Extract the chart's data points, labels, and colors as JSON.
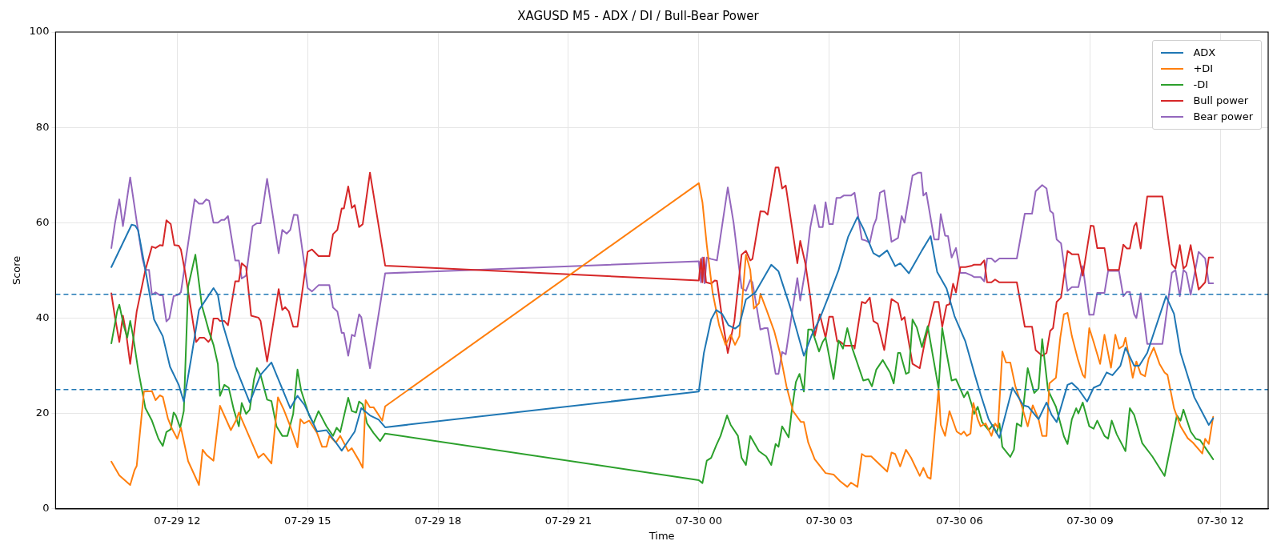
{
  "chart_data": {
    "type": "line",
    "title": "XAGUSD M5 - ADX / DI / Bull-Bear Power",
    "xlabel": "Time",
    "ylabel": "Score",
    "xlim": [
      "--07-29T09:12",
      "--07-30T13:06"
    ],
    "ylim": [
      0,
      100
    ],
    "xticks": [
      {
        "value": "--07-29T12:00",
        "label": "07-29 12"
      },
      {
        "value": "--07-29T15:00",
        "label": "07-29 15"
      },
      {
        "value": "--07-29T18:00",
        "label": "07-29 18"
      },
      {
        "value": "--07-29T21:00",
        "label": "07-29 21"
      },
      {
        "value": "--07-30T00:00",
        "label": "07-30 00"
      },
      {
        "value": "--07-30T03:00",
        "label": "07-30 03"
      },
      {
        "value": "--07-30T06:00",
        "label": "07-30 06"
      },
      {
        "value": "--07-30T09:00",
        "label": "07-30 09"
      },
      {
        "value": "--07-30T12:00",
        "label": "07-30 12"
      }
    ],
    "yticks": [
      0,
      20,
      40,
      60,
      80,
      100
    ],
    "grid": true,
    "legend": "top right",
    "marker": "none",
    "line_style": "solid",
    "ref_lines": [
      {
        "axis": "y",
        "value": 45,
        "color": "#1f77b4",
        "line_style": "dashed"
      },
      {
        "axis": "y",
        "value": 25,
        "color": "#1f77b4",
        "line_style": "dashed"
      }
    ],
    "series": [
      {
        "name": "ADX",
        "color": "#1f77b4",
        "x": [
          "--07-29T10:29",
          "--07-29T10:57",
          "--07-29T11:02",
          "--07-29T11:06",
          "--07-29T11:16",
          "--07-29T11:28",
          "--07-29T11:40",
          "--07-29T11:50",
          "--07-29T12:02",
          "--07-29T12:09",
          "--07-29T12:19",
          "--07-29T12:30",
          "--07-29T12:50",
          "--07-29T12:56",
          "--07-29T13:03",
          "--07-29T13:20",
          "--07-29T13:40",
          "--07-29T13:46",
          "--07-29T13:55",
          "--07-29T14:10",
          "--07-29T14:17",
          "--07-29T14:36",
          "--07-29T14:46",
          "--07-29T14:56",
          "--07-29T15:13",
          "--07-29T15:26",
          "--07-29T15:39",
          "--07-29T15:47",
          "--07-29T15:56",
          "--07-29T16:05",
          "--07-29T16:14",
          "--07-29T16:26",
          "--07-29T16:38",
          "--07-29T16:47",
          "--07-30T00:00",
          "--07-30T00:07",
          "--07-30T00:17",
          "--07-30T00:24",
          "--07-30T00:32",
          "--07-30T00:41",
          "--07-30T00:50",
          "--07-30T00:56",
          "--07-30T01:05",
          "--07-30T01:18",
          "--07-30T01:40",
          "--07-30T01:50",
          "--07-30T02:07",
          "--07-30T02:25",
          "--07-30T02:36",
          "--07-30T02:47",
          "--07-30T03:02",
          "--07-30T03:13",
          "--07-30T03:26",
          "--07-30T03:39",
          "--07-30T03:47",
          "--07-30T04:01",
          "--07-30T04:09",
          "--07-30T04:20",
          "--07-30T04:31",
          "--07-30T04:38",
          "--07-30T04:50",
          "--07-30T04:59",
          "--07-30T05:08",
          "--07-30T05:20",
          "--07-30T05:29",
          "--07-30T05:42",
          "--07-30T05:53",
          "--07-30T06:08",
          "--07-30T06:21",
          "--07-30T06:29",
          "--07-30T06:40",
          "--07-30T06:55",
          "--07-30T07:13",
          "--07-30T07:28",
          "--07-30T07:35",
          "--07-30T07:49",
          "--07-30T08:00",
          "--07-30T08:07",
          "--07-30T08:14",
          "--07-30T08:29",
          "--07-30T08:35",
          "--07-30T08:44",
          "--07-30T08:56",
          "--07-30T09:05",
          "--07-30T09:14",
          "--07-30T09:23",
          "--07-30T09:31",
          "--07-30T09:42",
          "--07-30T09:49",
          "--07-30T10:01",
          "--07-30T10:08",
          "--07-30T10:19",
          "--07-30T10:45",
          "--07-30T10:56",
          "--07-30T11:05",
          "--07-30T11:24",
          "--07-30T11:44",
          "--07-30T11:50"
        ],
        "values": [
          50.7,
          59.6,
          59.4,
          58.4,
          50.1,
          39.7,
          36.2,
          29.8,
          26.0,
          22.5,
          31.4,
          41.7,
          46.3,
          44.9,
          38.6,
          29.9,
          22.3,
          24.6,
          28.1,
          30.7,
          28.1,
          21.1,
          23.7,
          21.7,
          16.2,
          16.5,
          13.9,
          12.2,
          14.2,
          16.2,
          21.1,
          19.6,
          18.7,
          17.1,
          24.6,
          32.7,
          39.7,
          41.7,
          40.9,
          38.5,
          37.8,
          38.5,
          43.9,
          45.4,
          51.2,
          49.8,
          41.9,
          32.1,
          36.5,
          39.9,
          45.7,
          50.1,
          57.0,
          61.2,
          58.8,
          53.6,
          52.9,
          54.2,
          50.9,
          51.5,
          49.4,
          51.8,
          54.2,
          57.2,
          49.7,
          46.2,
          40.4,
          35.1,
          28.1,
          24.0,
          18.8,
          14.9,
          25.4,
          21.7,
          21.4,
          18.8,
          22.3,
          19.7,
          18.2,
          26.0,
          26.4,
          25.1,
          22.5,
          25.4,
          26.0,
          28.6,
          28.0,
          30.0,
          33.8,
          30.0,
          30.0,
          32.7,
          44.6,
          40.9,
          32.7,
          23.4,
          17.6,
          19.0
        ]
      },
      {
        "name": "+DI",
        "color": "#ff7f0e",
        "x": [
          "--07-29T10:29",
          "--07-29T10:40",
          "--07-29T10:55",
          "--07-29T11:01",
          "--07-29T11:04",
          "--07-29T11:14",
          "--07-29T11:25",
          "--07-29T11:30",
          "--07-29T11:36",
          "--07-29T11:40",
          "--07-29T11:47",
          "--07-29T11:53",
          "--07-29T12:00",
          "--07-29T12:05",
          "--07-29T12:15",
          "--07-29T12:30",
          "--07-29T12:35",
          "--07-29T12:41",
          "--07-29T12:50",
          "--07-29T12:59",
          "--07-29T13:14",
          "--07-29T13:22",
          "--07-29T13:25",
          "--07-29T13:29",
          "--07-29T13:52",
          "--07-29T13:59",
          "--07-29T14:10",
          "--07-29T14:19",
          "--07-29T14:27",
          "--07-29T14:36",
          "--07-29T14:46",
          "--07-29T14:50",
          "--07-29T14:55",
          "--07-29T15:02",
          "--07-29T15:13",
          "--07-29T15:20",
          "--07-29T15:26",
          "--07-29T15:30",
          "--07-29T15:39",
          "--07-29T15:45",
          "--07-29T15:56",
          "--07-29T16:01",
          "--07-29T16:11",
          "--07-29T16:16",
          "--07-29T16:20",
          "--07-29T16:26",
          "--07-29T16:31",
          "--07-29T16:43",
          "--07-29T16:47",
          "--07-30T00:00",
          "--07-30T00:05",
          "--07-30T00:11",
          "--07-30T00:19",
          "--07-30T00:28",
          "--07-30T00:37",
          "--07-30T00:44",
          "--07-30T00:50",
          "--07-30T00:56",
          "--07-30T01:05",
          "--07-30T01:11",
          "--07-30T01:16",
          "--07-30T01:23",
          "--07-30T01:25",
          "--07-30T01:33",
          "--07-30T01:44",
          "--07-30T01:52",
          "--07-30T02:01",
          "--07-30T02:10",
          "--07-30T02:21",
          "--07-30T02:25",
          "--07-30T02:31",
          "--07-30T02:40",
          "--07-30T02:55",
          "--07-30T03:06",
          "--07-30T03:15",
          "--07-30T03:25",
          "--07-30T03:30",
          "--07-30T03:39",
          "--07-30T03:45",
          "--07-30T03:50",
          "--07-30T03:58",
          "--07-30T04:20",
          "--07-30T04:26",
          "--07-30T04:31",
          "--07-30T04:38",
          "--07-30T04:46",
          "--07-30T04:53",
          "--07-30T05:05",
          "--07-30T05:10",
          "--07-30T05:16",
          "--07-30T05:20",
          "--07-30T05:31",
          "--07-30T05:34",
          "--07-30T05:40",
          "--07-30T05:46",
          "--07-30T05:56",
          "--07-30T06:02",
          "--07-30T06:06",
          "--07-30T06:10",
          "--07-30T06:15",
          "--07-30T06:19",
          "--07-30T06:25",
          "--07-30T06:29",
          "--07-30T06:36",
          "--07-30T06:44",
          "--07-30T06:49",
          "--07-30T06:53",
          "--07-30T06:59",
          "--07-30T07:04",
          "--07-30T07:10",
          "--07-30T07:17",
          "--07-30T07:25",
          "--07-30T07:34",
          "--07-30T07:41",
          "--07-30T07:49",
          "--07-30T07:54",
          "--07-30T08:00",
          "--07-30T08:04",
          "--07-30T08:13",
          "--07-30T08:19",
          "--07-30T08:24",
          "--07-30T08:29",
          "--07-30T08:35",
          "--07-30T08:43",
          "--07-30T08:50",
          "--07-30T08:53",
          "--07-30T08:59",
          "--07-30T09:05",
          "--07-30T09:14",
          "--07-30T09:20",
          "--07-30T09:29",
          "--07-30T09:35",
          "--07-30T09:40",
          "--07-30T09:46",
          "--07-30T09:49",
          "--07-30T09:59",
          "--07-30T10:04",
          "--07-30T10:10",
          "--07-30T10:16",
          "--07-30T10:21",
          "--07-30T10:28",
          "--07-30T10:36",
          "--07-30T10:43",
          "--07-30T10:47",
          "--07-30T10:56",
          "--07-30T11:05",
          "--07-30T11:15",
          "--07-30T11:22",
          "--07-30T11:35",
          "--07-30T11:39",
          "--07-30T11:44",
          "--07-30T11:50"
        ],
        "values": [
          9.9,
          7.0,
          5.0,
          8.1,
          9.0,
          24.6,
          24.7,
          22.8,
          23.8,
          23.5,
          19.0,
          16.7,
          14.7,
          17.0,
          10.0,
          5.0,
          12.4,
          11.2,
          10.1,
          21.6,
          16.5,
          18.8,
          20.2,
          18.8,
          10.7,
          11.6,
          9.5,
          23.4,
          20.8,
          17.3,
          12.9,
          18.8,
          17.9,
          18.5,
          15.9,
          13.0,
          13.0,
          15.3,
          13.9,
          15.3,
          12.1,
          12.7,
          10.1,
          8.6,
          22.8,
          21.3,
          21.3,
          18.5,
          21.5,
          68.3,
          64.3,
          55.3,
          45.4,
          38.5,
          34.4,
          36.5,
          34.4,
          36.2,
          53.3,
          50.1,
          42.0,
          43.1,
          45.1,
          41.9,
          37.3,
          32.7,
          25.7,
          20.5,
          18.2,
          18.2,
          13.9,
          10.4,
          7.5,
          7.2,
          5.8,
          4.6,
          5.5,
          4.6,
          11.5,
          11.0,
          11.0,
          7.8,
          11.8,
          11.5,
          8.9,
          12.4,
          10.7,
          6.9,
          8.6,
          6.6,
          6.3,
          25.1,
          17.6,
          15.3,
          20.5,
          16.2,
          15.6,
          16.2,
          15.3,
          15.8,
          22.2,
          18.8,
          17.3,
          17.9,
          15.3,
          17.9,
          17.0,
          33.0,
          30.7,
          30.7,
          25.7,
          22.0,
          17.3,
          21.7,
          18.8,
          15.3,
          15.3,
          26.3,
          27.5,
          35.9,
          40.8,
          41.1,
          36.2,
          31.5,
          28.1,
          27.5,
          37.9,
          35.0,
          30.4,
          36.5,
          29.6,
          36.5,
          33.6,
          34.2,
          35.9,
          27.5,
          30.9,
          28.3,
          27.8,
          31.5,
          33.8,
          30.4,
          28.6,
          28.1,
          21.1,
          17.3,
          14.8,
          13.9,
          11.6,
          14.7,
          13.6,
          19.3
        ]
      },
      {
        "name": "-DI",
        "color": "#2ca02c",
        "x": [
          "--07-29T10:29",
          "--07-29T10:37",
          "--07-29T10:40",
          "--07-29T10:46",
          "--07-29T10:51",
          "--07-29T10:55",
          "--07-29T10:59",
          "--07-29T11:06",
          "--07-29T11:16",
          "--07-29T11:25",
          "--07-29T11:34",
          "--07-29T11:40",
          "--07-29T11:45",
          "--07-29T11:51",
          "--07-29T11:55",
          "--07-29T11:58",
          "--07-29T12:04",
          "--07-29T12:09",
          "--07-29T12:15",
          "--07-29T12:25",
          "--07-29T12:34",
          "--07-29T12:44",
          "--07-29T12:50",
          "--07-29T12:56",
          "--07-29T12:59",
          "--07-29T13:05",
          "--07-29T13:11",
          "--07-29T13:18",
          "--07-29T13:25",
          "--07-29T13:29",
          "--07-29T13:35",
          "--07-29T13:40",
          "--07-29T13:46",
          "--07-29T13:50",
          "--07-29T13:55",
          "--07-29T14:04",
          "--07-29T14:10",
          "--07-29T14:17",
          "--07-29T14:25",
          "--07-29T14:32",
          "--07-29T14:40",
          "--07-29T14:46",
          "--07-29T14:51",
          "--07-29T15:02",
          "--07-29T15:08",
          "--07-29T15:15",
          "--07-29T15:26",
          "--07-29T15:35",
          "--07-29T15:40",
          "--07-29T15:45",
          "--07-29T15:56",
          "--07-29T16:01",
          "--07-29T16:07",
          "--07-29T16:11",
          "--07-29T16:16",
          "--07-29T16:22",
          "--07-29T16:31",
          "--07-29T16:40",
          "--07-29T16:47",
          "--07-30T00:00",
          "--07-30T00:05",
          "--07-30T00:11",
          "--07-30T00:17",
          "--07-30T00:24",
          "--07-30T00:30",
          "--07-30T00:39",
          "--07-30T00:44",
          "--07-30T00:54",
          "--07-30T00:59",
          "--07-30T01:05",
          "--07-30T01:11",
          "--07-30T01:23",
          "--07-30T01:33",
          "--07-30T01:40",
          "--07-30T01:46",
          "--07-30T01:50",
          "--07-30T01:55",
          "--07-30T02:04",
          "--07-30T02:08",
          "--07-30T02:14",
          "--07-30T02:19",
          "--07-30T02:25",
          "--07-30T02:31",
          "--07-30T02:36",
          "--07-30T02:46",
          "--07-30T02:51",
          "--07-30T02:55",
          "--07-30T03:06",
          "--07-30T03:13",
          "--07-30T03:19",
          "--07-30T03:25",
          "--07-30T03:32",
          "--07-30T03:47",
          "--07-30T03:54",
          "--07-30T03:59",
          "--07-30T04:05",
          "--07-30T04:14",
          "--07-30T04:24",
          "--07-30T04:29",
          "--07-30T04:35",
          "--07-30T04:38",
          "--07-30T04:46",
          "--07-30T04:50",
          "--07-30T04:55",
          "--07-30T05:01",
          "--07-30T05:08",
          "--07-30T05:16",
          "--07-30T05:31",
          "--07-30T05:36",
          "--07-30T05:42",
          "--07-30T05:49",
          "--07-30T05:55",
          "--07-30T06:06",
          "--07-30T06:11",
          "--07-30T06:17",
          "--07-30T06:20",
          "--07-30T06:25",
          "--07-30T06:31",
          "--07-30T06:40",
          "--07-30T06:46",
          "--07-30T06:51",
          "--07-30T06:55",
          "--07-30T06:59",
          "--07-30T07:10",
          "--07-30T07:15",
          "--07-30T07:19",
          "--07-30T07:25",
          "--07-30T07:34",
          "--07-30T07:43",
          "--07-30T07:49",
          "--07-30T07:54",
          "--07-30T08:02",
          "--07-30T08:13",
          "--07-30T08:24",
          "--07-30T08:29",
          "--07-30T08:35",
          "--07-30T08:41",
          "--07-30T08:44",
          "--07-30T08:50",
          "--07-30T08:59",
          "--07-30T09:05",
          "--07-30T09:10",
          "--07-30T09:20",
          "--07-30T09:25",
          "--07-30T09:30",
          "--07-30T09:37",
          "--07-30T09:49",
          "--07-30T09:55",
          "--07-30T10:01",
          "--07-30T10:12",
          "--07-30T10:26",
          "--07-30T10:43",
          "--07-30T11:00",
          "--07-30T11:05",
          "--07-30T11:09",
          "--07-30T11:19",
          "--07-30T11:26",
          "--07-30T11:32",
          "--07-30T11:41",
          "--07-30T11:50"
        ],
        "values": [
          34.7,
          41.4,
          42.8,
          38.5,
          35.9,
          39.4,
          36.2,
          29.2,
          21.1,
          18.5,
          14.7,
          13.2,
          16.1,
          16.7,
          20.2,
          19.6,
          17.0,
          20.5,
          46.6,
          53.3,
          42.6,
          37.1,
          34.4,
          30.4,
          23.7,
          26.0,
          25.4,
          20.8,
          17.3,
          22.2,
          19.9,
          20.8,
          27.2,
          29.5,
          28.1,
          22.9,
          22.6,
          17.3,
          15.3,
          15.3,
          19.9,
          29.2,
          24.8,
          19.6,
          17.9,
          20.5,
          17.3,
          15.3,
          17.0,
          16.1,
          23.3,
          20.5,
          20.2,
          22.5,
          21.9,
          17.9,
          15.9,
          14.2,
          15.8,
          6.0,
          5.4,
          10.1,
          10.7,
          13.3,
          15.3,
          19.6,
          17.6,
          15.3,
          10.7,
          9.2,
          15.3,
          12.1,
          11.0,
          9.2,
          13.6,
          13.0,
          17.3,
          15.0,
          20.2,
          26.6,
          28.3,
          24.6,
          37.6,
          37.6,
          33.0,
          35.0,
          35.9,
          27.2,
          35.3,
          33.6,
          37.9,
          33.6,
          26.9,
          27.2,
          25.7,
          29.2,
          31.2,
          28.6,
          26.3,
          32.7,
          32.7,
          28.3,
          28.6,
          39.7,
          38.0,
          33.9,
          38.3,
          25.2,
          37.9,
          32.7,
          26.9,
          27.2,
          23.4,
          24.6,
          21.7,
          19.9,
          21.4,
          18.2,
          16.5,
          17.6,
          15.9,
          17.9,
          13.0,
          10.9,
          12.4,
          17.9,
          17.3,
          29.5,
          24.3,
          25.2,
          35.6,
          24.9,
          21.4,
          15.2,
          13.6,
          18.8,
          21.1,
          20.0,
          22.3,
          17.3,
          16.8,
          18.5,
          15.3,
          14.7,
          18.5,
          15.6,
          12.1,
          21.1,
          19.7,
          13.8,
          11.0,
          6.9,
          19.6,
          18.5,
          20.8,
          16.2,
          14.7,
          14.4,
          12.4,
          10.4
        ]
      },
      {
        "name": "Bull power",
        "color": "#d62728",
        "x": [
          "--07-29T10:29",
          "--07-29T10:34",
          "--07-29T10:40",
          "--07-29T10:45",
          "--07-29T10:49",
          "--07-29T10:55",
          "--07-29T11:04",
          "--07-29T11:16",
          "--07-29T11:25",
          "--07-29T11:30",
          "--07-29T11:36",
          "--07-29T11:40",
          "--07-29T11:45",
          "--07-29T11:51",
          "--07-29T11:56",
          "--07-29T12:02",
          "--07-29T12:05",
          "--07-29T12:11",
          "--07-29T12:26",
          "--07-29T12:31",
          "--07-29T12:37",
          "--07-29T12:43",
          "--07-29T12:46",
          "--07-29T12:50",
          "--07-29T12:56",
          "--07-29T12:59",
          "--07-29T13:05",
          "--07-29T13:10",
          "--07-29T13:20",
          "--07-29T13:25",
          "--07-29T13:29",
          "--07-29T13:35",
          "--07-29T13:42",
          "--07-29T13:52",
          "--07-29T13:55",
          "--07-29T14:04",
          "--07-29T14:20",
          "--07-29T14:25",
          "--07-29T14:29",
          "--07-29T14:34",
          "--07-29T14:40",
          "--07-29T14:46",
          "--07-29T15:00",
          "--07-29T15:06",
          "--07-29T15:15",
          "--07-29T15:30",
          "--07-29T15:35",
          "--07-29T15:41",
          "--07-29T15:47",
          "--07-29T15:50",
          "--07-29T15:56",
          "--07-29T16:01",
          "--07-29T16:05",
          "--07-29T16:11",
          "--07-29T16:16",
          "--07-29T16:26",
          "--07-29T16:47",
          "--07-30T00:00",
          "--07-30T00:03",
          "--07-30T00:05",
          "--07-30T00:07",
          "--07-30T00:10",
          "--07-30T00:17",
          "--07-30T00:22",
          "--07-30T00:25",
          "--07-30T00:32",
          "--07-30T00:40",
          "--07-30T00:49",
          "--07-30T00:59",
          "--07-30T01:05",
          "--07-30T01:11",
          "--07-30T01:14",
          "--07-30T01:25",
          "--07-30T01:31",
          "--07-30T01:35",
          "--07-30T01:46",
          "--07-30T01:50",
          "--07-30T01:55",
          "--07-30T02:00",
          "--07-30T02:16",
          "--07-30T02:20",
          "--07-30T02:27",
          "--07-30T02:34",
          "--07-30T02:40",
          "--07-30T02:47",
          "--07-30T02:55",
          "--07-30T03:00",
          "--07-30T03:05",
          "--07-30T03:11",
          "--07-30T03:15",
          "--07-30T03:22",
          "--07-30T03:34",
          "--07-30T03:35",
          "--07-30T03:45",
          "--07-30T03:50",
          "--07-30T03:56",
          "--07-30T04:01",
          "--07-30T04:07",
          "--07-30T04:16",
          "--07-30T04:26",
          "--07-30T04:35",
          "--07-30T04:40",
          "--07-30T04:44",
          "--07-30T04:55",
          "--07-30T05:05",
          "--07-30T05:12",
          "--07-30T05:25",
          "--07-30T05:31",
          "--07-30T05:36",
          "--07-30T05:42",
          "--07-30T05:46",
          "--07-30T05:51",
          "--07-30T05:55",
          "--07-30T06:01",
          "--07-30T06:08",
          "--07-30T06:17",
          "--07-30T06:20",
          "--07-30T06:29",
          "--07-30T06:34",
          "--07-30T06:38",
          "--07-30T06:44",
          "--07-30T06:49",
          "--07-30T06:55",
          "--07-30T07:19",
          "--07-30T07:30",
          "--07-30T07:40",
          "--07-30T07:45",
          "--07-30T07:54",
          "--07-30T08:00",
          "--07-30T08:05",
          "--07-30T08:09",
          "--07-30T08:14",
          "--07-30T08:20",
          "--07-30T08:29",
          "--07-30T08:35",
          "--07-30T08:44",
          "--07-30T08:50",
          "--07-30T09:01",
          "--07-30T09:05",
          "--07-30T09:10",
          "--07-30T09:20",
          "--07-30T09:25",
          "--07-30T09:40",
          "--07-30T09:46",
          "--07-30T09:51",
          "--07-30T09:55",
          "--07-30T10:01",
          "--07-30T10:04",
          "--07-30T10:10",
          "--07-30T10:19",
          "--07-30T10:40",
          "--07-30T10:53",
          "--07-30T10:58",
          "--07-30T11:04",
          "--07-30T11:09",
          "--07-30T11:13",
          "--07-30T11:19",
          "--07-30T11:30",
          "--07-30T11:39",
          "--07-30T11:44",
          "--07-30T11:50"
        ],
        "values": [
          45.2,
          40.2,
          35.0,
          40.5,
          37.3,
          30.4,
          41.4,
          50.1,
          55.0,
          54.7,
          55.3,
          55.2,
          60.5,
          59.7,
          55.3,
          55.2,
          54.4,
          49.5,
          35.0,
          35.9,
          35.9,
          35.0,
          35.6,
          39.9,
          39.9,
          39.4,
          39.4,
          38.5,
          47.7,
          47.7,
          51.5,
          50.7,
          40.5,
          40.1,
          39.4,
          30.9,
          46.1,
          41.7,
          42.3,
          41.4,
          38.2,
          38.2,
          53.9,
          54.4,
          53.0,
          53.0,
          57.6,
          58.5,
          63.0,
          63.0,
          67.6,
          63.1,
          63.7,
          59.1,
          59.7,
          70.5,
          51.0,
          47.9,
          52.4,
          47.5,
          52.7,
          47.5,
          47.2,
          47.9,
          47.8,
          40.2,
          32.7,
          39.3,
          53.3,
          54.1,
          52.1,
          52.4,
          62.4,
          62.3,
          61.7,
          71.6,
          71.6,
          67.2,
          67.8,
          51.5,
          56.2,
          51.5,
          44.3,
          36.2,
          40.8,
          35.9,
          40.3,
          40.3,
          35.1,
          35.1,
          34.2,
          34.2,
          33.6,
          43.4,
          43.1,
          44.3,
          39.4,
          38.8,
          33.3,
          44.0,
          43.1,
          39.6,
          40.2,
          30.4,
          29.5,
          35.0,
          43.4,
          43.4,
          38.2,
          42.7,
          42.9,
          47.2,
          45.4,
          50.7,
          50.7,
          51.0,
          51.2,
          51.2,
          52.1,
          47.5,
          47.5,
          48.1,
          47.5,
          47.5,
          38.2,
          38.2,
          33.3,
          32.1,
          32.7,
          37.3,
          37.9,
          43.4,
          44.3,
          54.1,
          53.4,
          53.4,
          48.9,
          59.4,
          59.3,
          54.7,
          54.7,
          50.1,
          50.1,
          55.4,
          54.6,
          54.6,
          59.3,
          60.0,
          54.6,
          65.5,
          65.5,
          51.3,
          50.4,
          55.3,
          50.4,
          51.0,
          55.3,
          46.0,
          47.5,
          52.7,
          52.7
        ]
      },
      {
        "name": "Bear power",
        "color": "#9467bd",
        "x": [
          "--07-29T10:29",
          "--07-29T10:34",
          "--07-29T10:40",
          "--07-29T10:45",
          "--07-29T10:55",
          "--07-29T11:04",
          "--07-29T11:12",
          "--07-29T11:16",
          "--07-29T11:21",
          "--07-29T11:25",
          "--07-29T11:30",
          "--07-29T11:36",
          "--07-29T11:40",
          "--07-29T11:45",
          "--07-29T11:49",
          "--07-29T11:55",
          "--07-29T12:00",
          "--07-29T12:05",
          "--07-29T12:24",
          "--07-29T12:30",
          "--07-29T12:35",
          "--07-29T12:40",
          "--07-29T12:44",
          "--07-29T12:50",
          "--07-29T12:56",
          "--07-29T13:01",
          "--07-29T13:05",
          "--07-29T13:10",
          "--07-29T13:20",
          "--07-29T13:25",
          "--07-29T13:29",
          "--07-29T13:35",
          "--07-29T13:44",
          "--07-29T13:50",
          "--07-29T13:55",
          "--07-29T14:04",
          "--07-29T14:20",
          "--07-29T14:25",
          "--07-29T14:31",
          "--07-29T14:36",
          "--07-29T14:41",
          "--07-29T14:46",
          "--07-29T15:00",
          "--07-29T15:06",
          "--07-29T15:15",
          "--07-29T15:30",
          "--07-29T15:35",
          "--07-29T15:41",
          "--07-29T15:47",
          "--07-29T15:50",
          "--07-29T15:56",
          "--07-29T16:01",
          "--07-29T16:05",
          "--07-29T16:11",
          "--07-29T16:14",
          "--07-29T16:26",
          "--07-29T16:47",
          "--07-30T00:00",
          "--07-30T00:03",
          "--07-30T00:05",
          "--07-30T00:08",
          "--07-30T00:11",
          "--07-30T00:17",
          "--07-30T00:25",
          "--07-30T00:40",
          "--07-30T00:48",
          "--07-30T00:59",
          "--07-30T01:05",
          "--07-30T01:11",
          "--07-30T01:14",
          "--07-30T01:20",
          "--07-30T01:25",
          "--07-30T01:31",
          "--07-30T01:35",
          "--07-30T01:46",
          "--07-30T01:50",
          "--07-30T01:55",
          "--07-30T02:00",
          "--07-30T02:16",
          "--07-30T02:20",
          "--07-30T02:27",
          "--07-30T02:34",
          "--07-30T02:40",
          "--07-30T02:46",
          "--07-30T02:51",
          "--07-30T02:55",
          "--07-30T03:00",
          "--07-30T03:05",
          "--07-30T03:10",
          "--07-30T03:15",
          "--07-30T03:20",
          "--07-30T03:30",
          "--07-30T03:35",
          "--07-30T03:45",
          "--07-30T03:50",
          "--07-30T03:56",
          "--07-30T04:01",
          "--07-30T04:05",
          "--07-30T04:10",
          "--07-30T04:16",
          "--07-30T04:26",
          "--07-30T04:35",
          "--07-30T04:40",
          "--07-30T04:44",
          "--07-30T04:55",
          "--07-30T05:03",
          "--07-30T05:07",
          "--07-30T05:10",
          "--07-30T05:14",
          "--07-30T05:25",
          "--07-30T05:31",
          "--07-30T05:34",
          "--07-30T05:40",
          "--07-30T05:44",
          "--07-30T05:49",
          "--07-30T05:55",
          "--07-30T06:01",
          "--07-30T06:08",
          "--07-30T06:17",
          "--07-30T06:20",
          "--07-30T06:29",
          "--07-30T06:34",
          "--07-30T06:38",
          "--07-30T06:44",
          "--07-30T06:49",
          "--07-30T06:55",
          "--07-30T07:19",
          "--07-30T07:30",
          "--07-30T07:40",
          "--07-30T07:45",
          "--07-30T07:54",
          "--07-30T08:00",
          "--07-30T08:05",
          "--07-30T08:09",
          "--07-30T08:14",
          "--07-30T08:20",
          "--07-30T08:29",
          "--07-30T08:35",
          "--07-30T08:44",
          "--07-30T08:50",
          "--07-30T08:59",
          "--07-30T09:05",
          "--07-30T09:10",
          "--07-30T09:20",
          "--07-30T09:25",
          "--07-30T09:40",
          "--07-30T09:46",
          "--07-30T09:51",
          "--07-30T09:55",
          "--07-30T10:01",
          "--07-30T10:04",
          "--07-30T10:10",
          "--07-30T10:19",
          "--07-30T10:40",
          "--07-30T10:53",
          "--07-30T10:58",
          "--07-30T11:04",
          "--07-30T11:09",
          "--07-30T11:13",
          "--07-30T11:19",
          "--07-30T11:30",
          "--07-30T11:39",
          "--07-30T11:44",
          "--07-30T11:50"
        ],
        "values": [
          54.7,
          59.9,
          64.9,
          59.3,
          69.5,
          60.3,
          52.4,
          50.1,
          50.1,
          44.9,
          45.4,
          44.8,
          44.8,
          39.3,
          39.9,
          44.6,
          44.8,
          45.4,
          64.9,
          64.0,
          64.0,
          64.9,
          64.6,
          60.0,
          60.0,
          60.6,
          60.6,
          61.4,
          52.1,
          52.1,
          48.3,
          48.9,
          59.3,
          59.9,
          59.9,
          69.2,
          53.6,
          58.5,
          57.7,
          58.5,
          61.7,
          61.6,
          46.3,
          45.6,
          46.9,
          46.9,
          42.2,
          41.4,
          36.9,
          36.9,
          32.1,
          36.5,
          36.2,
          40.8,
          40.2,
          29.5,
          49.4,
          51.9,
          47.5,
          52.7,
          47.3,
          52.7,
          52.4,
          52.1,
          67.4,
          60.0,
          46.3,
          45.7,
          48.0,
          47.5,
          42.2,
          37.6,
          37.9,
          37.9,
          28.3,
          28.3,
          32.9,
          32.4,
          48.4,
          43.7,
          50.1,
          59.1,
          63.7,
          59.1,
          59.1,
          64.3,
          59.7,
          59.7,
          65.2,
          65.2,
          65.7,
          65.7,
          66.3,
          56.5,
          56.3,
          55.8,
          59.3,
          60.8,
          66.3,
          66.8,
          56.0,
          56.8,
          61.4,
          60.0,
          69.9,
          70.5,
          70.5,
          65.7,
          66.3,
          56.5,
          56.5,
          61.8,
          57.3,
          57.2,
          52.7,
          54.7,
          49.5,
          49.5,
          48.9,
          48.6,
          48.6,
          47.7,
          52.5,
          52.5,
          51.8,
          52.5,
          52.5,
          61.9,
          61.9,
          66.6,
          67.9,
          67.2,
          62.5,
          62.0,
          56.5,
          55.7,
          45.7,
          46.5,
          46.5,
          50.9,
          40.7,
          40.7,
          45.3,
          45.3,
          49.9,
          49.9,
          44.6,
          45.5,
          45.5,
          40.8,
          40.0,
          45.2,
          34.6,
          34.6,
          49.5,
          50.1,
          44.6,
          50.1,
          49.5,
          44.9,
          53.9,
          52.5,
          47.3,
          47.3
        ]
      }
    ]
  }
}
